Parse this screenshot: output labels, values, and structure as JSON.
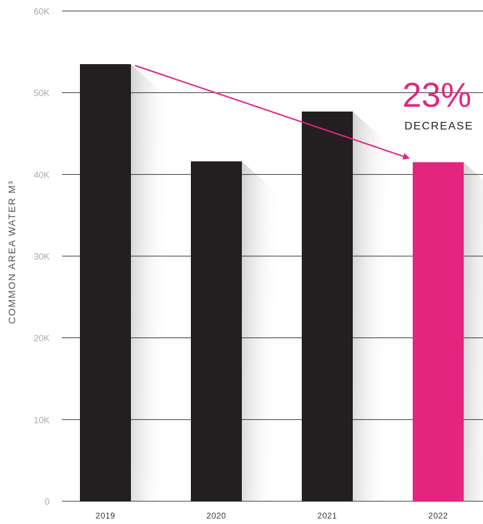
{
  "chart_data": {
    "type": "bar",
    "title": "",
    "ylabel": "COMMON AREA WATER M³",
    "xlabel": "",
    "categories": [
      "2019",
      "2020",
      "2021",
      "2022"
    ],
    "values": [
      53500,
      41600,
      47700,
      41500
    ],
    "ylim": [
      0,
      60000
    ],
    "yticks": [
      0,
      10000,
      20000,
      30000,
      40000,
      50000,
      60000
    ],
    "ytick_labels": [
      "0",
      "10K",
      "20K",
      "30K",
      "40K",
      "50K",
      "60K"
    ],
    "grid": true,
    "legend": "none",
    "annotation": {
      "value": "23%",
      "label": "DECREASE",
      "from_category": "2019",
      "to_category": "2022"
    },
    "colors": {
      "bar": "#231f20",
      "highlight": "#e3257f",
      "grid": "#333333",
      "arrow": "#e3257f"
    }
  }
}
